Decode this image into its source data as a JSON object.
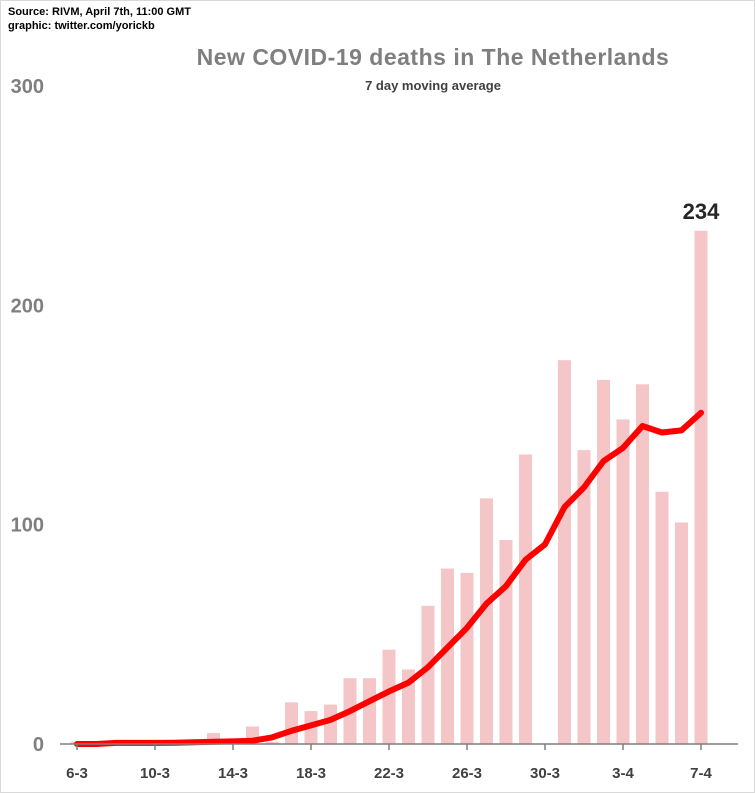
{
  "source_lines": [
    "Source: RIVM, April 7th, 11:00 GMT",
    "graphic: twitter.com/yorickb"
  ],
  "colors": {
    "bars": "#f4c6c8",
    "line": "#ff0000",
    "axis": "#7f7f7f"
  },
  "chart_data": {
    "type": "bar",
    "title": "New COVID-19 deaths in The Netherlands",
    "subtitle": "7 day moving average",
    "ylim": [
      0,
      300
    ],
    "yticks": [
      0,
      100,
      200,
      300
    ],
    "x_tick_labels": [
      "6-3",
      "10-3",
      "14-3",
      "18-3",
      "22-3",
      "26-3",
      "30-3",
      "3-4",
      "7-4"
    ],
    "grid": false,
    "peak_label": "234",
    "categories": [
      "6-3",
      "7-3",
      "8-3",
      "9-3",
      "10-3",
      "11-3",
      "12-3",
      "13-3",
      "14-3",
      "15-3",
      "16-3",
      "17-3",
      "18-3",
      "19-3",
      "20-3",
      "21-3",
      "22-3",
      "23-3",
      "24-3",
      "25-3",
      "26-3",
      "27-3",
      "28-3",
      "29-3",
      "30-3",
      "31-3",
      "1-4",
      "2-4",
      "3-4",
      "4-4",
      "5-4",
      "6-4",
      "7-4"
    ],
    "series": [
      {
        "name": "",
        "type": "bar",
        "values": [
          1,
          0,
          1,
          1,
          1,
          1,
          1,
          5,
          1,
          8,
          1,
          19,
          15,
          18,
          30,
          30,
          43,
          34,
          63,
          80,
          78,
          112,
          93,
          132,
          0,
          175,
          134,
          166,
          148,
          164,
          115,
          101,
          234
        ]
      },
      {
        "name": "",
        "type": "line",
        "values": [
          0,
          0,
          0.5,
          0.5,
          0.5,
          0.6,
          0.8,
          1,
          1.2,
          1.5,
          3,
          6,
          8.5,
          11,
          15,
          19.5,
          24,
          28,
          35,
          44,
          53,
          64,
          72,
          84,
          91,
          108,
          117,
          129,
          135,
          145,
          142,
          143,
          151
        ]
      }
    ]
  }
}
